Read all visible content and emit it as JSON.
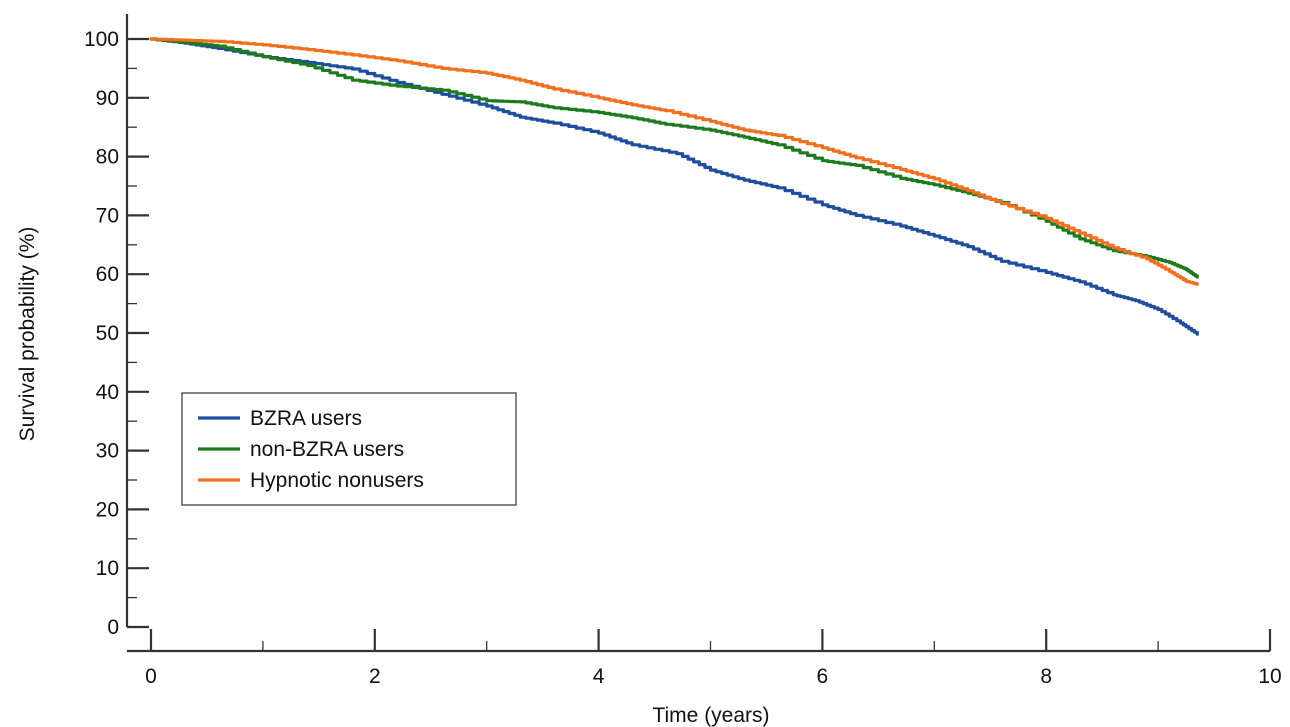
{
  "chart_data": {
    "type": "line",
    "title": "",
    "xlabel": "Time (years)",
    "ylabel": "Survival probability (%)",
    "xlim": [
      0,
      10
    ],
    "ylim": [
      0,
      100
    ],
    "xticks": [
      "0",
      "2",
      "4",
      "6",
      "8",
      "10"
    ],
    "yticks": [
      "0",
      "10",
      "20",
      "30",
      "40",
      "50",
      "60",
      "70",
      "80",
      "90",
      "100"
    ],
    "grid": false,
    "legend_position": "bottom-left",
    "series": [
      {
        "name": "BZRA users",
        "color": "#1f4e9c",
        "x": [
          0,
          0.3,
          0.6,
          1.0,
          1.4,
          1.8,
          2.2,
          2.6,
          3.0,
          3.3,
          3.6,
          4.0,
          4.3,
          4.7,
          5.0,
          5.3,
          5.6,
          6.0,
          6.3,
          6.7,
          7.0,
          7.3,
          7.6,
          8.0,
          8.3,
          8.6,
          8.8,
          9.0,
          9.2,
          9.35
        ],
        "y": [
          100,
          99.3,
          98.4,
          97.0,
          96.0,
          94.9,
          92.6,
          90.6,
          88.6,
          86.7,
          85.7,
          84.0,
          82.0,
          80.5,
          77.7,
          76.0,
          74.7,
          71.8,
          70.0,
          68.2,
          66.5,
          64.7,
          62.2,
          60.3,
          58.7,
          56.5,
          55.5,
          54.0,
          51.7,
          49.8
        ]
      },
      {
        "name": "non-BZRA users",
        "color": "#1e7a1e",
        "x": [
          0,
          0.3,
          0.6,
          1.0,
          1.4,
          1.8,
          2.2,
          2.6,
          3.0,
          3.3,
          3.6,
          4.0,
          4.3,
          4.6,
          5.0,
          5.3,
          5.6,
          6.0,
          6.3,
          6.7,
          7.0,
          7.3,
          7.6,
          8.0,
          8.3,
          8.6,
          8.9,
          9.1,
          9.25,
          9.35
        ],
        "y": [
          100,
          99.4,
          98.8,
          97.0,
          95.5,
          93.0,
          92.0,
          91.3,
          89.5,
          89.3,
          88.3,
          87.5,
          86.6,
          85.5,
          84.5,
          83.3,
          82.0,
          79.3,
          78.5,
          76.3,
          75.2,
          73.8,
          72.2,
          69.0,
          66.0,
          64.0,
          63.0,
          62.0,
          60.8,
          59.5
        ]
      },
      {
        "name": "Hypnotic nonusers",
        "color": "#f07020",
        "x": [
          0,
          0.3,
          0.6,
          1.0,
          1.4,
          1.8,
          2.2,
          2.6,
          3.0,
          3.3,
          3.6,
          4.0,
          4.3,
          4.6,
          5.0,
          5.3,
          5.6,
          6.0,
          6.3,
          6.7,
          7.0,
          7.3,
          7.6,
          8.0,
          8.3,
          8.6,
          8.9,
          9.1,
          9.25,
          9.35
        ],
        "y": [
          100,
          99.8,
          99.6,
          99.0,
          98.2,
          97.3,
          96.3,
          95.0,
          94.2,
          93.0,
          91.5,
          90.0,
          88.8,
          87.8,
          86.0,
          84.5,
          83.6,
          81.5,
          79.8,
          77.8,
          76.2,
          74.2,
          72.0,
          69.5,
          67.0,
          64.5,
          62.6,
          60.5,
          58.8,
          58.3
        ]
      }
    ]
  }
}
